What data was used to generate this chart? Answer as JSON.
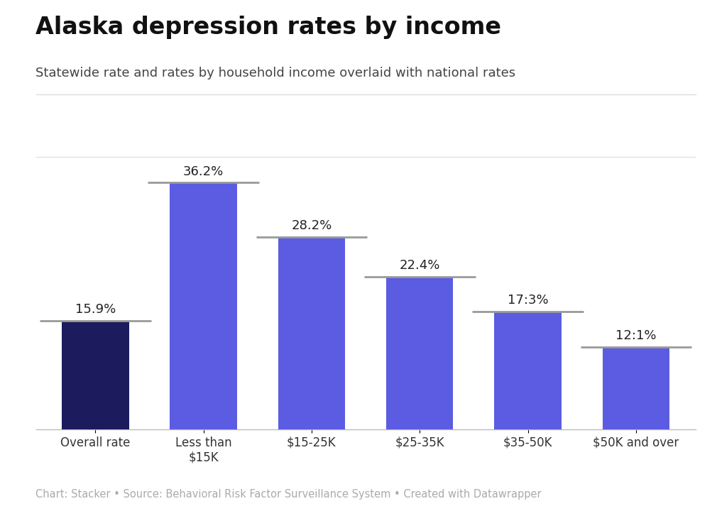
{
  "title": "Alaska depression rates by income",
  "subtitle": "Statewide rate and rates by household income overlaid with national rates",
  "footer": "Chart: Stacker • Source: Behavioral Risk Factor Surveillance System • Created with Datawrapper",
  "categories": [
    "Overall rate",
    "Less than\n$15K",
    "$15-25K",
    "$25-35K",
    "$35-50K",
    "$50K and over"
  ],
  "values": [
    15.9,
    36.2,
    28.2,
    22.4,
    17.3,
    12.1
  ],
  "national_rates": [
    15.9,
    36.2,
    28.2,
    22.4,
    17.3,
    12.1
  ],
  "bar_colors": [
    "#1b1b5e",
    "#5b5ce2",
    "#5b5ce2",
    "#5b5ce2",
    "#5b5ce2",
    "#5b5ce2"
  ],
  "national_line_color": "#999999",
  "label_format": [
    "15.9%",
    "36.2%",
    "28.2%",
    "22.4%",
    "17:3%",
    "12:1%"
  ],
  "background_color": "#ffffff",
  "ylim": [
    0,
    42
  ],
  "title_fontsize": 24,
  "subtitle_fontsize": 13,
  "label_fontsize": 13,
  "tick_fontsize": 12,
  "footer_fontsize": 10.5
}
